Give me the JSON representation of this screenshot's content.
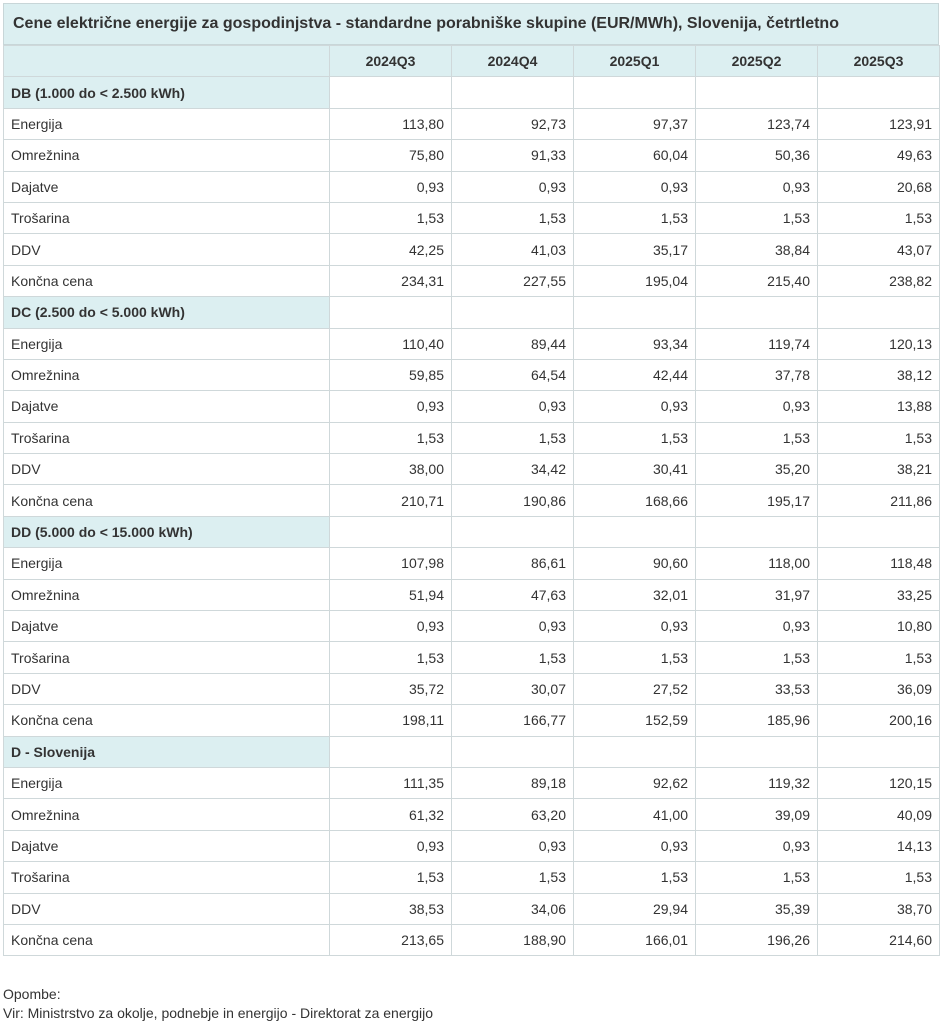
{
  "title": "Cene električne energije za gospodinjstva - standardne porabniške skupine (EUR/MWh), Slovenija, četrtletno",
  "columns": [
    "2024Q3",
    "2024Q4",
    "2025Q1",
    "2025Q2",
    "2025Q3"
  ],
  "groups": [
    {
      "name": "DB (1.000 do < 2.500 kWh)",
      "rows": [
        {
          "label": "Energija",
          "values": [
            "113,80",
            "92,73",
            "97,37",
            "123,74",
            "123,91"
          ]
        },
        {
          "label": "Omrežnina",
          "values": [
            "75,80",
            "91,33",
            "60,04",
            "50,36",
            "49,63"
          ]
        },
        {
          "label": "Dajatve",
          "values": [
            "0,93",
            "0,93",
            "0,93",
            "0,93",
            "20,68"
          ]
        },
        {
          "label": "Trošarina",
          "values": [
            "1,53",
            "1,53",
            "1,53",
            "1,53",
            "1,53"
          ]
        },
        {
          "label": "DDV",
          "values": [
            "42,25",
            "41,03",
            "35,17",
            "38,84",
            "43,07"
          ]
        },
        {
          "label": "Končna cena",
          "values": [
            "234,31",
            "227,55",
            "195,04",
            "215,40",
            "238,82"
          ]
        }
      ]
    },
    {
      "name": "DC (2.500 do < 5.000 kWh)",
      "rows": [
        {
          "label": "Energija",
          "values": [
            "110,40",
            "89,44",
            "93,34",
            "119,74",
            "120,13"
          ]
        },
        {
          "label": "Omrežnina",
          "values": [
            "59,85",
            "64,54",
            "42,44",
            "37,78",
            "38,12"
          ]
        },
        {
          "label": "Dajatve",
          "values": [
            "0,93",
            "0,93",
            "0,93",
            "0,93",
            "13,88"
          ]
        },
        {
          "label": "Trošarina",
          "values": [
            "1,53",
            "1,53",
            "1,53",
            "1,53",
            "1,53"
          ]
        },
        {
          "label": "DDV",
          "values": [
            "38,00",
            "34,42",
            "30,41",
            "35,20",
            "38,21"
          ]
        },
        {
          "label": "Končna cena",
          "values": [
            "210,71",
            "190,86",
            "168,66",
            "195,17",
            "211,86"
          ]
        }
      ]
    },
    {
      "name": "DD (5.000 do < 15.000 kWh)",
      "rows": [
        {
          "label": "Energija",
          "values": [
            "107,98",
            "86,61",
            "90,60",
            "118,00",
            "118,48"
          ]
        },
        {
          "label": "Omrežnina",
          "values": [
            "51,94",
            "47,63",
            "32,01",
            "31,97",
            "33,25"
          ]
        },
        {
          "label": "Dajatve",
          "values": [
            "0,93",
            "0,93",
            "0,93",
            "0,93",
            "10,80"
          ]
        },
        {
          "label": "Trošarina",
          "values": [
            "1,53",
            "1,53",
            "1,53",
            "1,53",
            "1,53"
          ]
        },
        {
          "label": "DDV",
          "values": [
            "35,72",
            "30,07",
            "27,52",
            "33,53",
            "36,09"
          ]
        },
        {
          "label": "Končna cena",
          "values": [
            "198,11",
            "166,77",
            "152,59",
            "185,96",
            "200,16"
          ]
        }
      ]
    },
    {
      "name": "D - Slovenija",
      "rows": [
        {
          "label": "Energija",
          "values": [
            "111,35",
            "89,18",
            "92,62",
            "119,32",
            "120,15"
          ]
        },
        {
          "label": "Omrežnina",
          "values": [
            "61,32",
            "63,20",
            "41,00",
            "39,09",
            "40,09"
          ]
        },
        {
          "label": "Dajatve",
          "values": [
            "0,93",
            "0,93",
            "0,93",
            "0,93",
            "14,13"
          ]
        },
        {
          "label": "Trošarina",
          "values": [
            "1,53",
            "1,53",
            "1,53",
            "1,53",
            "1,53"
          ]
        },
        {
          "label": "DDV",
          "values": [
            "38,53",
            "34,06",
            "29,94",
            "35,39",
            "38,70"
          ]
        },
        {
          "label": "Končna cena",
          "values": [
            "213,65",
            "188,90",
            "166,01",
            "196,26",
            "214,60"
          ]
        }
      ]
    }
  ],
  "notes_label": "Opombe:",
  "source": "Vir: Ministrstvo za okolje, podnebje in energijo - Direktorat za energijo"
}
